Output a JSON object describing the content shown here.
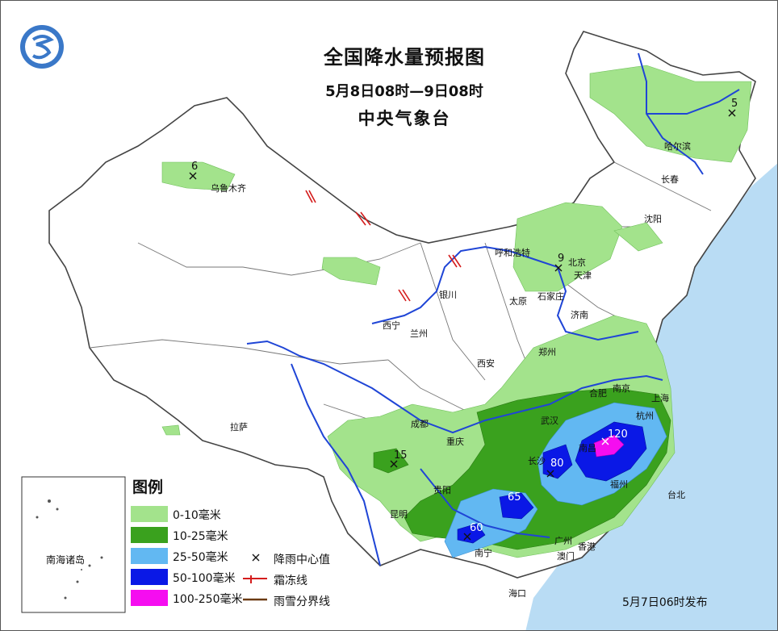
{
  "title": {
    "main": "全国降水量预报图",
    "period": "5月8日08时—9日08时",
    "issuer": "中央气象台"
  },
  "cities": [
    {
      "name": "哈尔滨",
      "key": "harbin"
    },
    {
      "name": "长春",
      "key": "changchun"
    },
    {
      "name": "沈阳",
      "key": "shenyang"
    },
    {
      "name": "乌鲁木齐",
      "key": "urumqi"
    },
    {
      "name": "呼和浩特",
      "key": "hohhot"
    },
    {
      "name": "北京",
      "key": "beijing"
    },
    {
      "name": "天津",
      "key": "tianjin"
    },
    {
      "name": "石家庄",
      "key": "shijiazhuang"
    },
    {
      "name": "太原",
      "key": "taiyuan"
    },
    {
      "name": "济南",
      "key": "jinan"
    },
    {
      "name": "银川",
      "key": "yinchuan"
    },
    {
      "name": "西宁",
      "key": "xining"
    },
    {
      "name": "兰州",
      "key": "lanzhou"
    },
    {
      "name": "郑州",
      "key": "zhengzhou"
    },
    {
      "name": "西安",
      "key": "xian"
    },
    {
      "name": "合肥",
      "key": "hefei"
    },
    {
      "name": "南京",
      "key": "nanjing"
    },
    {
      "name": "上海",
      "key": "shanghai"
    },
    {
      "name": "武汉",
      "key": "wuhan"
    },
    {
      "name": "杭州",
      "key": "hangzhou"
    },
    {
      "name": "成都",
      "key": "chengdu"
    },
    {
      "name": "重庆",
      "key": "chongqing"
    },
    {
      "name": "长沙",
      "key": "changsha"
    },
    {
      "name": "南昌",
      "key": "nanchang"
    },
    {
      "name": "拉萨",
      "key": "lhasa"
    },
    {
      "name": "贵阳",
      "key": "guiyang"
    },
    {
      "name": "福州",
      "key": "fuzhou"
    },
    {
      "name": "台北",
      "key": "taipei"
    },
    {
      "name": "昆明",
      "key": "kunming"
    },
    {
      "name": "南宁",
      "key": "nanning"
    },
    {
      "name": "广州",
      "key": "guangzhou"
    },
    {
      "name": "香港",
      "key": "hongkong"
    },
    {
      "name": "澳门",
      "key": "macau"
    },
    {
      "name": "海口",
      "key": "haikou"
    }
  ],
  "rain_centers": [
    "5",
    "6",
    "9",
    "15",
    "120",
    "80",
    "65",
    "60"
  ],
  "legend": {
    "title": "图例",
    "items": [
      {
        "label": "0-10毫米",
        "color": "#a3e38c"
      },
      {
        "label": "10-25毫米",
        "color": "#3aa11e"
      },
      {
        "label": "25-50毫米",
        "color": "#62b8f2"
      },
      {
        "label": "50-100毫米",
        "color": "#0a18e6"
      },
      {
        "label": "100-250毫米",
        "color": "#f50df0"
      }
    ],
    "symbols": [
      {
        "label": "降雨中心值",
        "icon": "cross-icon"
      },
      {
        "label": "霜冻线",
        "icon": "frost-line-icon"
      },
      {
        "label": "雨雪分界线",
        "icon": "rain-snow-line-icon"
      }
    ]
  },
  "inset": {
    "label": "南海诸岛"
  },
  "issued": "5月7日06时发布",
  "colors": {
    "sea": "#b9dcf4",
    "river": "#1f45d6",
    "border": "#444444",
    "frost": "#d41c1c"
  }
}
